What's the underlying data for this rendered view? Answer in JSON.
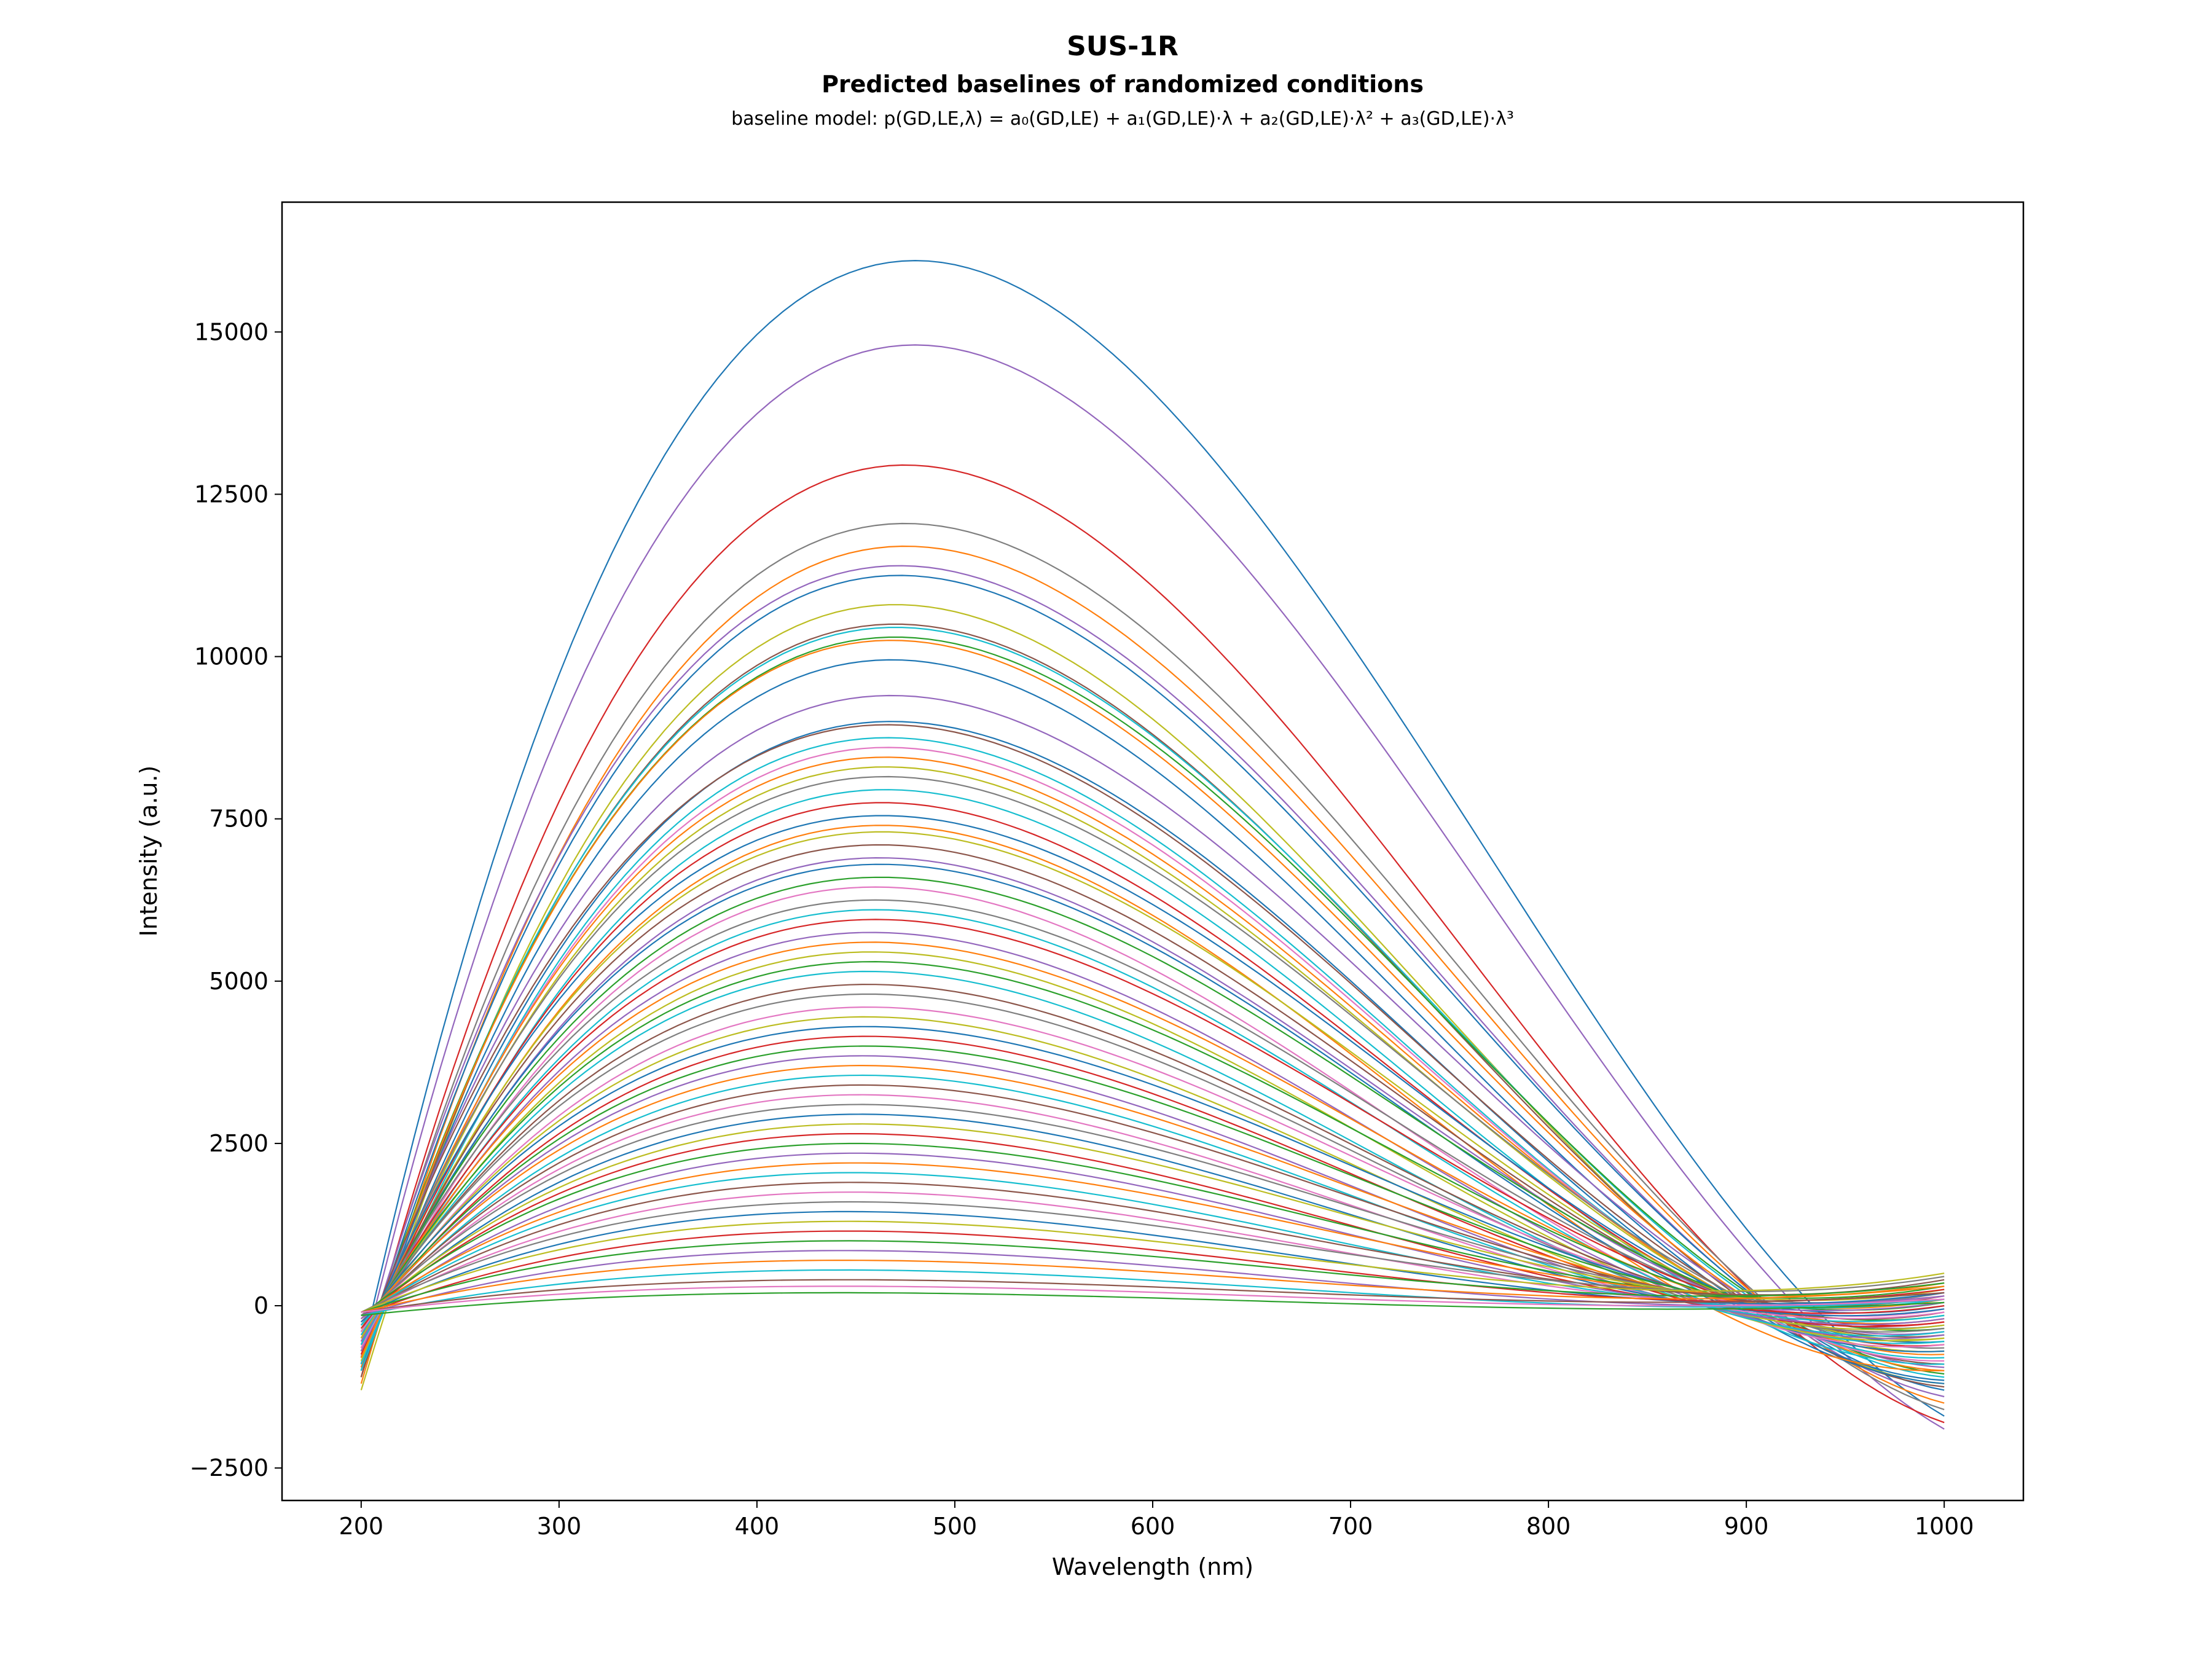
{
  "header": {
    "title": "SUS-1R",
    "subtitle": "Predicted baselines of randomized conditions",
    "formula": "baseline model: p(GD,LE,λ) = a₀(GD,LE) + a₁(GD,LE)·λ + a₂(GD,LE)·λ² + a₃(GD,LE)·λ³"
  },
  "chart_data": {
    "type": "line",
    "title": "SUS-1R",
    "subtitle": "Predicted baselines of randomized conditions",
    "xlabel": "Wavelength (nm)",
    "ylabel": "Intensity (a.u.)",
    "xlim": [
      160,
      1040
    ],
    "ylim": [
      -3000,
      17000
    ],
    "x_ticks": [
      200,
      300,
      400,
      500,
      600,
      700,
      800,
      900,
      1000
    ],
    "x_tick_labels": [
      "200",
      "300",
      "400",
      "500",
      "600",
      "700",
      "800",
      "900",
      "1000"
    ],
    "y_ticks": [
      -2500,
      0,
      2500,
      5000,
      7500,
      10000,
      12500,
      15000
    ],
    "y_tick_labels": [
      "−2500",
      "0",
      "2500",
      "5000",
      "7500",
      "10000",
      "12500",
      "15000"
    ],
    "x_range_of_curves": [
      200,
      1000
    ],
    "grid": false,
    "legend": "none",
    "palette": [
      "#1f77b4",
      "#ff7f0e",
      "#2ca02c",
      "#d62728",
      "#9467bd",
      "#8c564b",
      "#e377c2",
      "#7f7f7f",
      "#bcbd22",
      "#17becf"
    ],
    "series": [
      {
        "x": [
          200,
          480,
          1000
        ],
        "y": [
          -800,
          16100,
          -1700
        ],
        "color": "#1f77b4"
      },
      {
        "x": [
          200,
          480,
          1000
        ],
        "y": [
          -900,
          14800,
          -1900
        ],
        "color": "#9467bd"
      },
      {
        "x": [
          200,
          475,
          1000
        ],
        "y": [
          -1100,
          12950,
          -1800
        ],
        "color": "#d62728"
      },
      {
        "x": [
          200,
          475,
          1000
        ],
        "y": [
          -1000,
          12050,
          -1600
        ],
        "color": "#7f7f7f"
      },
      {
        "x": [
          200,
          475,
          1000
        ],
        "y": [
          -1200,
          11700,
          -1500
        ],
        "color": "#ff7f0e"
      },
      {
        "x": [
          200,
          472,
          1000
        ],
        "y": [
          -900,
          11400,
          -1400
        ],
        "color": "#9467bd"
      },
      {
        "x": [
          200,
          472,
          1000
        ],
        "y": [
          -1000,
          11250,
          -1300
        ],
        "color": "#1f77b4"
      },
      {
        "x": [
          200,
          470,
          1000
        ],
        "y": [
          -1300,
          10800,
          -1200
        ],
        "color": "#bcbd22"
      },
      {
        "x": [
          200,
          470,
          1000
        ],
        "y": [
          -1100,
          10500,
          -1250
        ],
        "color": "#8c564b"
      },
      {
        "x": [
          200,
          470,
          1000
        ],
        "y": [
          -1000,
          10450,
          -1100
        ],
        "color": "#17becf"
      },
      {
        "x": [
          200,
          470,
          1000
        ],
        "y": [
          -900,
          10300,
          -1050
        ],
        "color": "#2ca02c"
      },
      {
        "x": [
          200,
          468,
          1000
        ],
        "y": [
          -950,
          10250,
          -1000
        ],
        "color": "#ff7f0e"
      },
      {
        "x": [
          200,
          468,
          1000
        ],
        "y": [
          -1000,
          9950,
          -1150
        ],
        "color": "#1f77b4"
      },
      {
        "x": [
          200,
          468,
          1000
        ],
        "y": [
          -800,
          9400,
          -950
        ],
        "color": "#9467bd"
      },
      {
        "x": [
          200,
          468,
          1000
        ],
        "y": [
          -900,
          9000,
          -1200
        ],
        "color": "#1f77b4"
      },
      {
        "x": [
          200,
          466,
          1000
        ],
        "y": [
          -700,
          8950,
          -900
        ],
        "color": "#8c564b"
      },
      {
        "x": [
          200,
          466,
          1000
        ],
        "y": [
          -1000,
          8750,
          -800
        ],
        "color": "#17becf"
      },
      {
        "x": [
          200,
          466,
          1000
        ],
        "y": [
          -900,
          8600,
          -850
        ],
        "color": "#e377c2"
      },
      {
        "x": [
          200,
          465,
          1000
        ],
        "y": [
          -800,
          8450,
          -750
        ],
        "color": "#ff7f0e"
      },
      {
        "x": [
          200,
          465,
          1000
        ],
        "y": [
          -850,
          8300,
          -700
        ],
        "color": "#bcbd22"
      },
      {
        "x": [
          200,
          465,
          1000
        ],
        "y": [
          -700,
          8150,
          -650
        ],
        "color": "#7f7f7f"
      },
      {
        "x": [
          200,
          465,
          1000
        ],
        "y": [
          -900,
          7950,
          -900
        ],
        "color": "#17becf"
      },
      {
        "x": [
          200,
          463,
          1000
        ],
        "y": [
          -750,
          7750,
          -600
        ],
        "color": "#d62728"
      },
      {
        "x": [
          200,
          463,
          1000
        ],
        "y": [
          -600,
          7550,
          -550
        ],
        "color": "#1f77b4"
      },
      {
        "x": [
          200,
          463,
          1000
        ],
        "y": [
          -800,
          7400,
          -1000
        ],
        "color": "#ff7f0e"
      },
      {
        "x": [
          200,
          463,
          1000
        ],
        "y": [
          -700,
          7300,
          -500
        ],
        "color": "#bcbd22"
      },
      {
        "x": [
          200,
          462,
          1000
        ],
        "y": [
          -650,
          7100,
          -450
        ],
        "color": "#8c564b"
      },
      {
        "x": [
          200,
          462,
          1000
        ],
        "y": [
          -700,
          6900,
          -400
        ],
        "color": "#9467bd"
      },
      {
        "x": [
          200,
          462,
          1000
        ],
        "y": [
          -600,
          6800,
          -700
        ],
        "color": "#1f77b4"
      },
      {
        "x": [
          200,
          462,
          1000
        ],
        "y": [
          -550,
          6600,
          -350
        ],
        "color": "#2ca02c"
      },
      {
        "x": [
          200,
          460,
          1000
        ],
        "y": [
          -650,
          6450,
          -600
        ],
        "color": "#e377c2"
      },
      {
        "x": [
          200,
          460,
          1000
        ],
        "y": [
          -500,
          6250,
          -300
        ],
        "color": "#7f7f7f"
      },
      {
        "x": [
          200,
          460,
          1000
        ],
        "y": [
          -600,
          6100,
          -550
        ],
        "color": "#17becf"
      },
      {
        "x": [
          200,
          460,
          1000
        ],
        "y": [
          -500,
          5950,
          -250
        ],
        "color": "#d62728"
      },
      {
        "x": [
          200,
          458,
          1000
        ],
        "y": [
          -550,
          5750,
          -450
        ],
        "color": "#9467bd"
      },
      {
        "x": [
          200,
          458,
          1000
        ],
        "y": [
          -450,
          5600,
          -200
        ],
        "color": "#ff7f0e"
      },
      {
        "x": [
          200,
          458,
          1000
        ],
        "y": [
          -500,
          5450,
          -500
        ],
        "color": "#bcbd22"
      },
      {
        "x": [
          200,
          458,
          1000
        ],
        "y": [
          -400,
          5300,
          -150
        ],
        "color": "#2ca02c"
      },
      {
        "x": [
          200,
          456,
          1000
        ],
        "y": [
          -450,
          5150,
          -400
        ],
        "color": "#17becf"
      },
      {
        "x": [
          200,
          456,
          1000
        ],
        "y": [
          -400,
          4950,
          -100
        ],
        "color": "#8c564b"
      },
      {
        "x": [
          200,
          456,
          1000
        ],
        "y": [
          -350,
          4800,
          -350
        ],
        "color": "#7f7f7f"
      },
      {
        "x": [
          200,
          456,
          1000
        ],
        "y": [
          -400,
          4600,
          -50
        ],
        "color": "#e377c2"
      },
      {
        "x": [
          200,
          455,
          1000
        ],
        "y": [
          -350,
          4450,
          -300
        ],
        "color": "#bcbd22"
      },
      {
        "x": [
          200,
          455,
          1000
        ],
        "y": [
          -300,
          4300,
          0
        ],
        "color": "#1f77b4"
      },
      {
        "x": [
          200,
          455,
          1000
        ],
        "y": [
          -350,
          4150,
          -250
        ],
        "color": "#d62728"
      },
      {
        "x": [
          200,
          455,
          1000
        ],
        "y": [
          -300,
          4000,
          50
        ],
        "color": "#2ca02c"
      },
      {
        "x": [
          200,
          453,
          1000
        ],
        "y": [
          -300,
          3850,
          -200
        ],
        "color": "#9467bd"
      },
      {
        "x": [
          200,
          453,
          1000
        ],
        "y": [
          -250,
          3700,
          100
        ],
        "color": "#ff7f0e"
      },
      {
        "x": [
          200,
          453,
          1000
        ],
        "y": [
          -300,
          3550,
          -150
        ],
        "color": "#17becf"
      },
      {
        "x": [
          200,
          453,
          1000
        ],
        "y": [
          -250,
          3400,
          150
        ],
        "color": "#8c564b"
      },
      {
        "x": [
          200,
          452,
          1000
        ],
        "y": [
          -250,
          3250,
          -100
        ],
        "color": "#e377c2"
      },
      {
        "x": [
          200,
          452,
          1000
        ],
        "y": [
          -200,
          3100,
          200
        ],
        "color": "#7f7f7f"
      },
      {
        "x": [
          200,
          452,
          1000
        ],
        "y": [
          -250,
          2950,
          -50
        ],
        "color": "#1f77b4"
      },
      {
        "x": [
          200,
          452,
          1000
        ],
        "y": [
          -200,
          2800,
          250
        ],
        "color": "#bcbd22"
      },
      {
        "x": [
          200,
          450,
          1000
        ],
        "y": [
          -200,
          2650,
          0
        ],
        "color": "#d62728"
      },
      {
        "x": [
          200,
          450,
          1000
        ],
        "y": [
          -150,
          2500,
          300
        ],
        "color": "#2ca02c"
      },
      {
        "x": [
          200,
          450,
          1000
        ],
        "y": [
          -200,
          2350,
          50
        ],
        "color": "#9467bd"
      },
      {
        "x": [
          200,
          450,
          1000
        ],
        "y": [
          -150,
          2200,
          350
        ],
        "color": "#ff7f0e"
      },
      {
        "x": [
          200,
          448,
          1000
        ],
        "y": [
          -150,
          2050,
          100
        ],
        "color": "#17becf"
      },
      {
        "x": [
          200,
          448,
          1000
        ],
        "y": [
          -150,
          1900,
          400
        ],
        "color": "#8c564b"
      },
      {
        "x": [
          200,
          448,
          1000
        ],
        "y": [
          -150,
          1750,
          150
        ],
        "color": "#e377c2"
      },
      {
        "x": [
          200,
          448,
          1000
        ],
        "y": [
          -100,
          1600,
          450
        ],
        "color": "#7f7f7f"
      },
      {
        "x": [
          200,
          446,
          1000
        ],
        "y": [
          -150,
          1450,
          200
        ],
        "color": "#1f77b4"
      },
      {
        "x": [
          200,
          446,
          1000
        ],
        "y": [
          -100,
          1300,
          500
        ],
        "color": "#bcbd22"
      },
      {
        "x": [
          200,
          446,
          1000
        ],
        "y": [
          -150,
          1150,
          250
        ],
        "color": "#d62728"
      },
      {
        "x": [
          200,
          446,
          1000
        ],
        "y": [
          -100,
          1000,
          350
        ],
        "color": "#2ca02c"
      },
      {
        "x": [
          200,
          444,
          1000
        ],
        "y": [
          -150,
          850,
          150
        ],
        "color": "#9467bd"
      },
      {
        "x": [
          200,
          444,
          1000
        ],
        "y": [
          -100,
          700,
          300
        ],
        "color": "#ff7f0e"
      },
      {
        "x": [
          200,
          444,
          1000
        ],
        "y": [
          -150,
          550,
          100
        ],
        "color": "#17becf"
      },
      {
        "x": [
          200,
          444,
          1000
        ],
        "y": [
          -100,
          400,
          200
        ],
        "color": "#8c564b"
      },
      {
        "x": [
          200,
          442,
          1000
        ],
        "y": [
          -100,
          300,
          100
        ],
        "color": "#e377c2"
      },
      {
        "x": [
          200,
          442,
          1000
        ],
        "y": [
          -150,
          200,
          50
        ],
        "color": "#2ca02c"
      }
    ]
  }
}
